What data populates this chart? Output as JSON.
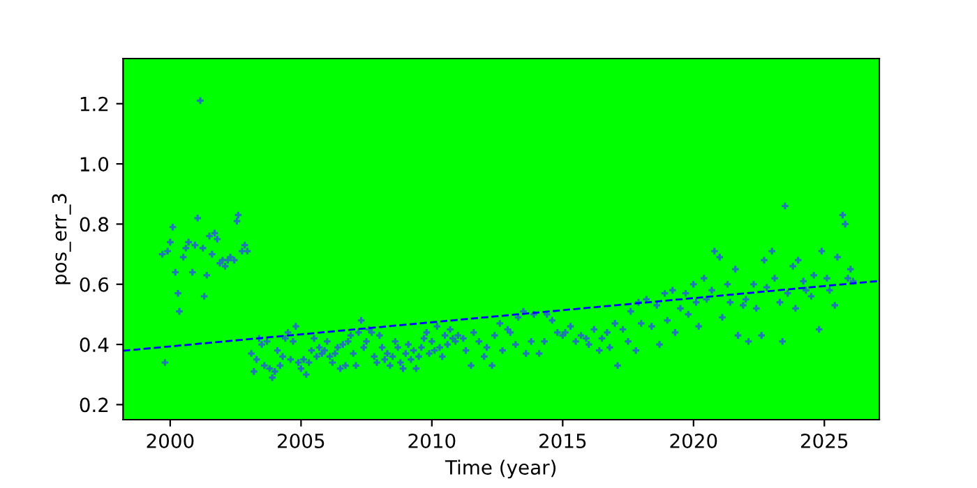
{
  "chart_data": {
    "type": "scatter",
    "xlabel": "Time (year)",
    "ylabel": "pos_err_3",
    "xlim": [
      1998.2,
      2027.1
    ],
    "ylim": [
      0.15,
      1.35
    ],
    "xticks": [
      2000,
      2005,
      2010,
      2015,
      2020,
      2025
    ],
    "yticks": [
      0.2,
      0.4,
      0.6,
      0.8,
      {
        "value": 1.0,
        "label": "1.0"
      },
      1.2
    ],
    "grid": false,
    "legend": false,
    "marker": "cross",
    "series": [
      {
        "color": "#1f77b4",
        "x": [
          1999.7,
          1999.8,
          1999.9,
          2000.0,
          2000.1,
          2000.2,
          2000.3,
          2000.35,
          2000.5,
          2000.6,
          2000.7,
          2000.85,
          2000.95,
          2001.05,
          2001.15,
          2001.25,
          2001.3,
          2001.4,
          2001.5,
          2001.6,
          2001.7,
          2001.8,
          2001.9,
          2002.0,
          2002.1,
          2002.2,
          2002.3,
          2002.45,
          2002.55,
          2002.6,
          2002.75,
          2002.85,
          2002.95,
          2003.1,
          2003.2,
          2003.3,
          2003.4,
          2003.5,
          2003.6,
          2003.7,
          2003.8,
          2003.9,
          2004.0,
          2004.1,
          2004.2,
          2004.3,
          2004.4,
          2004.5,
          2004.6,
          2004.7,
          2004.8,
          2004.9,
          2005.0,
          2005.1,
          2005.2,
          2005.3,
          2005.4,
          2005.5,
          2005.6,
          2005.7,
          2005.8,
          2005.9,
          2006.0,
          2006.1,
          2006.2,
          2006.3,
          2006.4,
          2006.5,
          2006.6,
          2006.7,
          2006.8,
          2006.9,
          2007.0,
          2007.1,
          2007.2,
          2007.3,
          2007.4,
          2007.5,
          2007.6,
          2007.7,
          2007.8,
          2007.9,
          2008.0,
          2008.1,
          2008.2,
          2008.3,
          2008.4,
          2008.5,
          2008.6,
          2008.7,
          2008.8,
          2008.9,
          2009.0,
          2009.1,
          2009.2,
          2009.3,
          2009.4,
          2009.5,
          2009.6,
          2009.7,
          2009.8,
          2009.9,
          2010.0,
          2010.1,
          2010.2,
          2010.3,
          2010.4,
          2010.5,
          2010.6,
          2010.7,
          2010.8,
          2010.9,
          2011.0,
          2011.2,
          2011.3,
          2011.5,
          2011.6,
          2011.8,
          2012.0,
          2012.1,
          2012.3,
          2012.4,
          2012.6,
          2012.7,
          2012.9,
          2013.0,
          2013.2,
          2013.3,
          2013.5,
          2013.6,
          2013.8,
          2013.9,
          2014.1,
          2014.3,
          2014.4,
          2014.6,
          2014.8,
          2015.0,
          2015.1,
          2015.3,
          2015.5,
          2015.7,
          2015.9,
          2016.0,
          2016.2,
          2016.4,
          2016.5,
          2016.7,
          2016.8,
          2017.0,
          2017.1,
          2017.3,
          2017.5,
          2017.6,
          2017.8,
          2017.9,
          2018.0,
          2018.2,
          2018.4,
          2018.6,
          2018.7,
          2018.9,
          2019.0,
          2019.2,
          2019.3,
          2019.5,
          2019.7,
          2019.8,
          2020.0,
          2020.1,
          2020.2,
          2020.4,
          2020.5,
          2020.7,
          2020.8,
          2021.0,
          2021.1,
          2021.3,
          2021.4,
          2021.6,
          2021.7,
          2021.9,
          2022.0,
          2022.1,
          2022.3,
          2022.4,
          2022.6,
          2022.7,
          2022.8,
          2023.0,
          2023.1,
          2023.3,
          2023.4,
          2023.5,
          2023.6,
          2023.8,
          2023.9,
          2024.0,
          2024.2,
          2024.3,
          2024.5,
          2024.6,
          2024.8,
          2024.9,
          2025.1,
          2025.2,
          2025.4,
          2025.5,
          2025.7,
          2025.8,
          2025.9,
          2026.0,
          2026.1
        ],
        "values": [
          0.7,
          0.34,
          0.71,
          0.74,
          0.79,
          0.64,
          0.57,
          0.51,
          0.69,
          0.72,
          0.74,
          0.64,
          0.73,
          0.82,
          1.21,
          0.72,
          0.56,
          0.63,
          0.76,
          0.7,
          0.77,
          0.75,
          0.67,
          0.68,
          0.66,
          0.68,
          0.69,
          0.68,
          0.81,
          0.83,
          0.71,
          0.73,
          0.71,
          0.37,
          0.31,
          0.35,
          0.42,
          0.4,
          0.33,
          0.41,
          0.32,
          0.29,
          0.31,
          0.38,
          0.33,
          0.36,
          0.42,
          0.44,
          0.35,
          0.41,
          0.46,
          0.34,
          0.32,
          0.35,
          0.3,
          0.34,
          0.38,
          0.42,
          0.36,
          0.39,
          0.37,
          0.38,
          0.41,
          0.36,
          0.34,
          0.37,
          0.39,
          0.32,
          0.4,
          0.33,
          0.41,
          0.43,
          0.37,
          0.33,
          0.44,
          0.48,
          0.39,
          0.41,
          0.45,
          0.44,
          0.36,
          0.34,
          0.43,
          0.39,
          0.35,
          0.37,
          0.33,
          0.36,
          0.41,
          0.39,
          0.34,
          0.32,
          0.37,
          0.4,
          0.35,
          0.38,
          0.32,
          0.36,
          0.39,
          0.42,
          0.44,
          0.37,
          0.41,
          0.38,
          0.46,
          0.39,
          0.36,
          0.43,
          0.4,
          0.45,
          0.42,
          0.41,
          0.43,
          0.42,
          0.38,
          0.33,
          0.44,
          0.41,
          0.36,
          0.39,
          0.33,
          0.43,
          0.47,
          0.38,
          0.45,
          0.44,
          0.4,
          0.49,
          0.51,
          0.37,
          0.41,
          0.5,
          0.37,
          0.41,
          0.5,
          0.48,
          0.44,
          0.43,
          0.44,
          0.46,
          0.41,
          0.43,
          0.42,
          0.4,
          0.45,
          0.38,
          0.42,
          0.44,
          0.39,
          0.47,
          0.33,
          0.45,
          0.41,
          0.51,
          0.38,
          0.54,
          0.47,
          0.55,
          0.46,
          0.53,
          0.4,
          0.57,
          0.48,
          0.58,
          0.44,
          0.52,
          0.57,
          0.5,
          0.6,
          0.54,
          0.46,
          0.62,
          0.55,
          0.58,
          0.71,
          0.69,
          0.49,
          0.6,
          0.54,
          0.65,
          0.43,
          0.53,
          0.55,
          0.41,
          0.6,
          0.52,
          0.43,
          0.68,
          0.59,
          0.71,
          0.62,
          0.54,
          0.41,
          0.86,
          0.57,
          0.66,
          0.52,
          0.68,
          0.61,
          0.58,
          0.56,
          0.63,
          0.45,
          0.71,
          0.62,
          0.58,
          0.53,
          0.69,
          0.83,
          0.8,
          0.62,
          0.65,
          0.61
        ]
      },
      {
        "type": "line",
        "color": "#0000ff",
        "line_style": "dashed",
        "marker": "none",
        "x": [
          1998.2,
          2027.1
        ],
        "values": [
          0.379,
          0.611
        ]
      }
    ]
  }
}
